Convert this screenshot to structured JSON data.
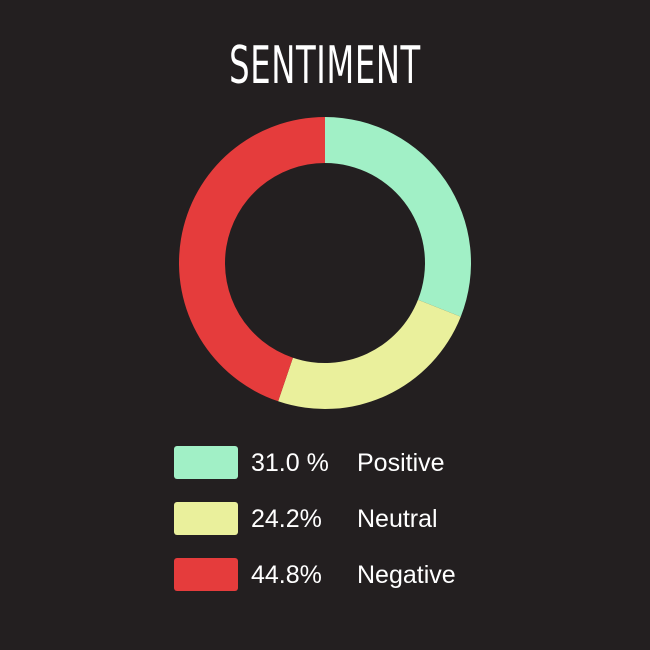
{
  "chart_data": {
    "type": "pie",
    "title": "SENTIMENT",
    "style": "donut",
    "legend_placement": "bottom",
    "series": [
      {
        "name": "Positive",
        "value": 31.0,
        "label": "31.0 %",
        "color": "#a1f0c6"
      },
      {
        "name": "Neutral",
        "value": 24.2,
        "label": "24.2%",
        "color": "#eaf09c"
      },
      {
        "name": "Negative",
        "value": 44.8,
        "label": "44.8%",
        "color": "#e53c3c"
      }
    ]
  }
}
